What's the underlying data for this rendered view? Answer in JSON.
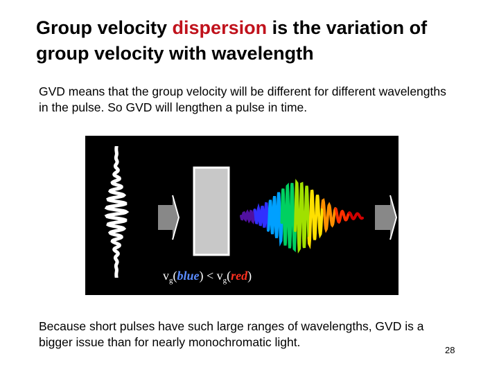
{
  "slide": {
    "title_part1": "Group velocity ",
    "title_accent": "dispersion",
    "title_part2": " is the variation of group velocity with wavelength",
    "paragraph1": "GVD means that the group velocity will be different for different wavelengths in the pulse.  So GVD will lengthen a pulse in time.",
    "paragraph2": "Because short pulses have such large ranges of wavelengths, GVD is a bigger issue than for nearly monochromatic light.",
    "slide_number": "28"
  },
  "figure": {
    "caption": {
      "v1": "v",
      "sub1": "g",
      "open1": "(",
      "blue": "blue",
      "close1": ")",
      "lt": " < ",
      "v2": "v",
      "sub2": "g",
      "open2": "(",
      "red": "red",
      "close2": ")"
    },
    "colors": {
      "background": "#000000",
      "input_pulse": "#ffffff",
      "medium": "#c8c8c8",
      "arrow": "#888888",
      "accent_title": "#c0121c",
      "caption_blue": "#5a8cff",
      "caption_red": "#ff3020"
    },
    "chirp_spectrum": [
      "#5010a0",
      "#3030ff",
      "#00a0ff",
      "#00d060",
      "#a0e000",
      "#ffe000",
      "#ff9000",
      "#ff3000",
      "#d00000"
    ]
  }
}
